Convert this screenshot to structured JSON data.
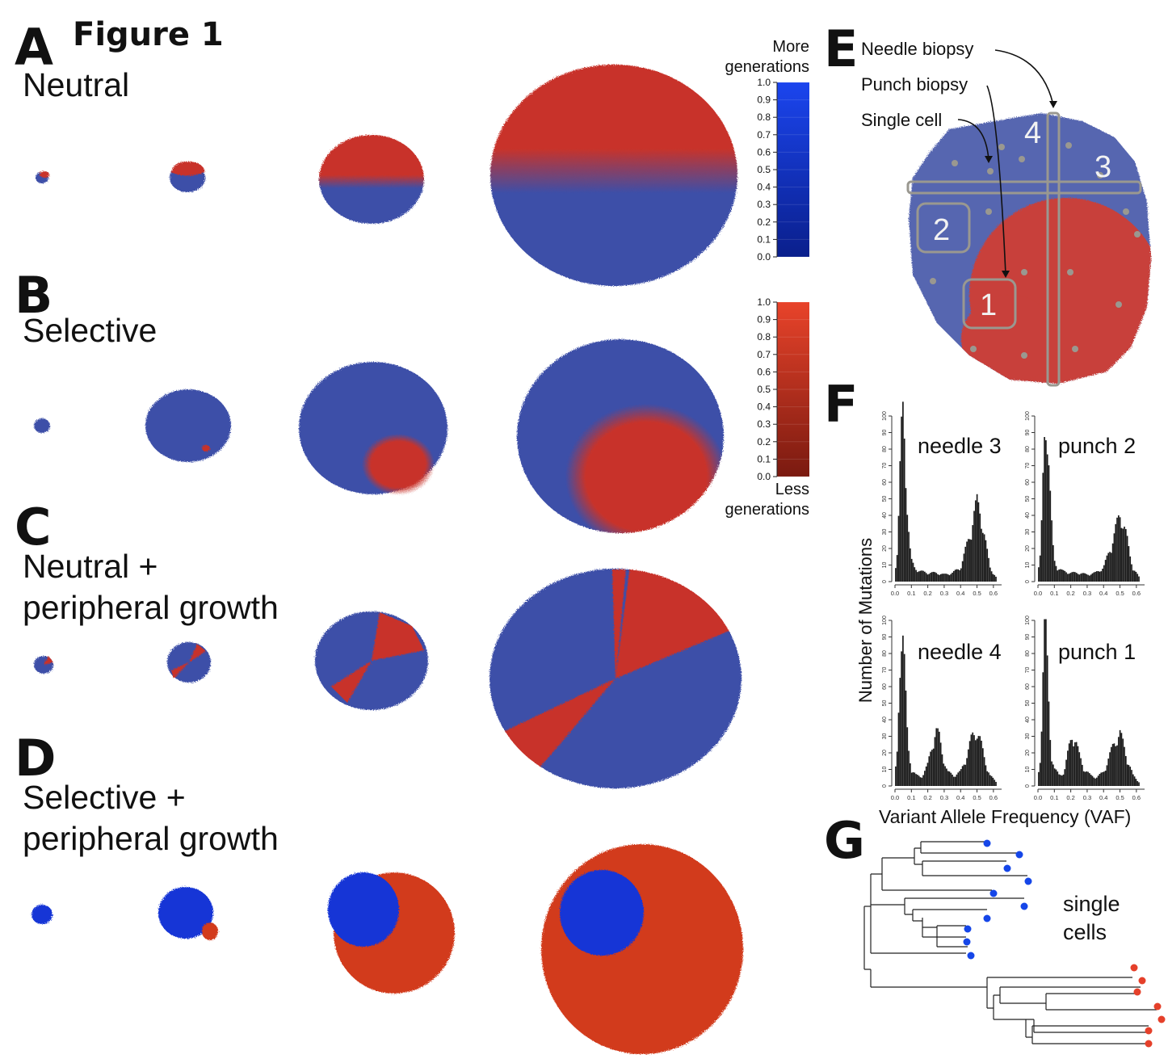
{
  "figure_title": "Figure 1",
  "panels": {
    "A": {
      "letter": "A",
      "title": "Neutral"
    },
    "B": {
      "letter": "B",
      "title": "Selective"
    },
    "C": {
      "letter": "C",
      "title": "Neutral +\nperipheral growth"
    },
    "D": {
      "letter": "D",
      "title": "Selective +\nperipheral growth"
    },
    "E": {
      "letter": "E"
    },
    "F": {
      "letter": "F"
    },
    "G": {
      "letter": "G"
    }
  },
  "colorbars": {
    "blue": {
      "label_top": "More\ngenerations",
      "ticks": [
        "1.0",
        "0.9",
        "0.8",
        "0.7",
        "0.6",
        "0.5",
        "0.4",
        "0.3",
        "0.2",
        "0.1",
        "0.0"
      ],
      "color_top": "#1b45ee",
      "color_bottom": "#0a1f8c"
    },
    "red": {
      "label_bottom": "Less\ngenerations",
      "ticks": [
        "1.0",
        "0.9",
        "0.8",
        "0.7",
        "0.6",
        "0.5",
        "0.4",
        "0.3",
        "0.2",
        "0.1",
        "0.0"
      ],
      "color_top": "#e8432a",
      "color_bottom": "#7a1a10"
    }
  },
  "biopsy": {
    "needle_label": "Needle biopsy",
    "punch_label": "Punch biopsy",
    "single_label": "Single cell",
    "region_numbers": [
      "1",
      "2",
      "3",
      "4"
    ]
  },
  "histograms": {
    "ylabel": "Number of Mutations",
    "xlabel": "Variant Allele Frequency (VAF)",
    "yticks": [
      "0",
      "10",
      "20",
      "30",
      "40",
      "50",
      "60",
      "70",
      "80",
      "90",
      "100"
    ],
    "xticks": [
      "0.0",
      "0.1",
      "0.2",
      "0.3",
      "0.4",
      "0.5",
      "0.6"
    ],
    "panels": [
      "needle 3",
      "punch 2",
      "needle 4",
      "punch 1"
    ]
  },
  "tree": {
    "label": "single\ncells",
    "blue_color": "#1546e8",
    "red_color": "#e5402a"
  },
  "colors": {
    "blue_cells": "#3d4fa8",
    "red_cells": "#c8332a",
    "bright_blue": "#1336d6",
    "bright_red": "#d23a1e",
    "biopsy_gray": "#9a9890"
  },
  "chart_data": [
    {
      "type": "bar",
      "title": "needle 3",
      "xlabel": "Variant Allele Frequency (VAF)",
      "ylabel": "Number of Mutations",
      "xlim": [
        0.0,
        0.65
      ],
      "ylim": [
        0,
        100
      ],
      "x": [
        0.01,
        0.02,
        0.03,
        0.04,
        0.05,
        0.06,
        0.07,
        0.08,
        0.09,
        0.1,
        0.12,
        0.15,
        0.2,
        0.25,
        0.3,
        0.35,
        0.4,
        0.43,
        0.46,
        0.48,
        0.5,
        0.52,
        0.54,
        0.56,
        0.58,
        0.62
      ],
      "values": [
        10,
        30,
        60,
        85,
        98,
        80,
        55,
        35,
        20,
        12,
        8,
        6,
        5,
        5,
        4,
        5,
        8,
        18,
        28,
        38,
        45,
        40,
        30,
        18,
        8,
        2
      ]
    },
    {
      "type": "bar",
      "title": "punch 2",
      "xlabel": "Variant Allele Frequency (VAF)",
      "ylabel": "Number of Mutations",
      "xlim": [
        0.0,
        0.65
      ],
      "ylim": [
        0,
        100
      ],
      "x": [
        0.01,
        0.02,
        0.03,
        0.04,
        0.05,
        0.06,
        0.07,
        0.08,
        0.09,
        0.1,
        0.12,
        0.15,
        0.2,
        0.25,
        0.3,
        0.35,
        0.4,
        0.43,
        0.46,
        0.48,
        0.5,
        0.52,
        0.54,
        0.56,
        0.58,
        0.62
      ],
      "values": [
        8,
        25,
        55,
        85,
        97,
        82,
        60,
        38,
        22,
        12,
        8,
        6,
        5,
        5,
        4,
        5,
        8,
        16,
        25,
        32,
        38,
        35,
        26,
        15,
        8,
        2
      ]
    },
    {
      "type": "bar",
      "title": "needle 4",
      "xlabel": "Variant Allele Frequency (VAF)",
      "ylabel": "Number of Mutations",
      "xlim": [
        0.0,
        0.65
      ],
      "ylim": [
        0,
        100
      ],
      "x": [
        0.01,
        0.02,
        0.03,
        0.04,
        0.05,
        0.06,
        0.07,
        0.08,
        0.1,
        0.13,
        0.16,
        0.2,
        0.23,
        0.25,
        0.27,
        0.29,
        0.32,
        0.36,
        0.4,
        0.44,
        0.47,
        0.5,
        0.52,
        0.55,
        0.58,
        0.62
      ],
      "values": [
        10,
        35,
        70,
        92,
        88,
        65,
        40,
        22,
        10,
        6,
        5,
        12,
        25,
        32,
        28,
        18,
        8,
        6,
        8,
        18,
        28,
        32,
        26,
        14,
        6,
        2
      ]
    },
    {
      "type": "bar",
      "title": "punch 1",
      "xlabel": "Variant Allele Frequency (VAF)",
      "ylabel": "Number of Mutations",
      "xlim": [
        0.0,
        0.65
      ],
      "ylim": [
        0,
        100
      ],
      "x": [
        0.01,
        0.02,
        0.03,
        0.04,
        0.05,
        0.06,
        0.07,
        0.08,
        0.1,
        0.13,
        0.16,
        0.19,
        0.21,
        0.23,
        0.25,
        0.28,
        0.32,
        0.36,
        0.4,
        0.44,
        0.47,
        0.5,
        0.52,
        0.55,
        0.58,
        0.62
      ],
      "values": [
        8,
        30,
        65,
        90,
        85,
        62,
        38,
        20,
        10,
        6,
        8,
        22,
        30,
        26,
        18,
        10,
        6,
        5,
        8,
        18,
        26,
        30,
        24,
        14,
        6,
        2
      ]
    }
  ]
}
